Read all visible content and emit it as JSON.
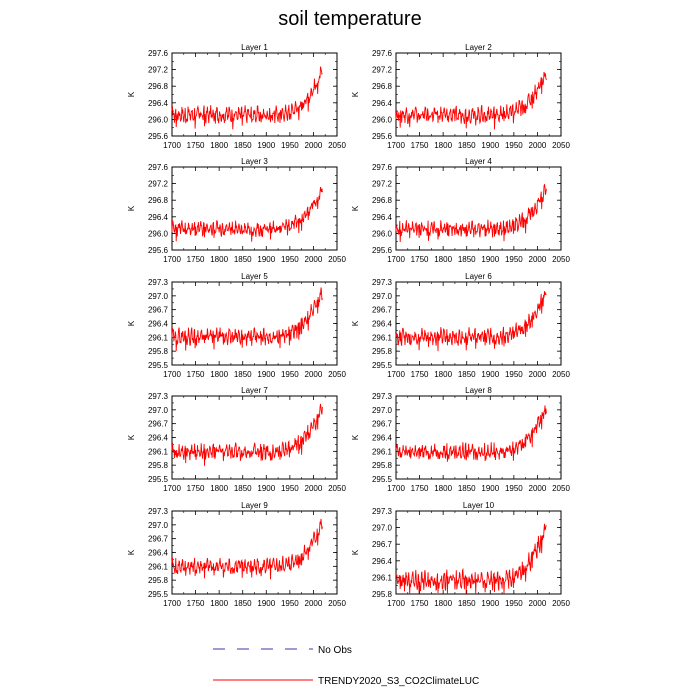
{
  "chart_data": {
    "title": "soil temperature",
    "type": "line",
    "ylabel": "K",
    "x_ticks": [
      1700,
      1750,
      1800,
      1850,
      1900,
      1950,
      2000,
      2050
    ],
    "xlim": [
      1700,
      2050
    ],
    "series_colors": {
      "model": "#ff0000",
      "obs": "#3a3aa0"
    },
    "panels": [
      {
        "title": "Layer 1",
        "ylim": [
          295.6,
          297.6
        ],
        "yticks": [
          "297.6",
          "297.2",
          "296.8",
          "296.4",
          "296.0",
          "295.6"
        ],
        "base": 296.12,
        "amp": 0.18,
        "endval": 297.25
      },
      {
        "title": "Layer 2",
        "ylim": [
          295.6,
          297.6
        ],
        "yticks": [
          "297.6",
          "297.2",
          "296.8",
          "296.4",
          "296.0",
          "295.6"
        ],
        "base": 296.12,
        "amp": 0.18,
        "endval": 297.25
      },
      {
        "title": "Layer 3",
        "ylim": [
          295.6,
          297.6
        ],
        "yticks": [
          "297.6",
          "297.2",
          "296.8",
          "296.4",
          "296.0",
          "295.6"
        ],
        "base": 296.12,
        "amp": 0.17,
        "endval": 297.2
      },
      {
        "title": "Layer 4",
        "ylim": [
          295.6,
          297.6
        ],
        "yticks": [
          "297.6",
          "297.2",
          "296.8",
          "296.4",
          "296.0",
          "295.6"
        ],
        "base": 296.12,
        "amp": 0.17,
        "endval": 297.2
      },
      {
        "title": "Layer 5",
        "ylim": [
          295.5,
          297.3
        ],
        "yticks": [
          "297.3",
          "297.0",
          "296.7",
          "296.4",
          "296.1",
          "295.8",
          "295.5"
        ],
        "base": 296.12,
        "amp": 0.16,
        "endval": 297.22
      },
      {
        "title": "Layer 6",
        "ylim": [
          295.5,
          297.3
        ],
        "yticks": [
          "297.3",
          "297.0",
          "296.7",
          "296.4",
          "296.1",
          "295.8",
          "295.5"
        ],
        "base": 296.12,
        "amp": 0.16,
        "endval": 297.22
      },
      {
        "title": "Layer 7",
        "ylim": [
          295.5,
          297.3
        ],
        "yticks": [
          "297.3",
          "297.0",
          "296.7",
          "296.4",
          "296.1",
          "295.8",
          "295.5"
        ],
        "base": 296.1,
        "amp": 0.16,
        "endval": 297.18
      },
      {
        "title": "Layer 8",
        "ylim": [
          295.5,
          297.3
        ],
        "yticks": [
          "297.3",
          "297.0",
          "296.7",
          "296.4",
          "296.1",
          "295.8",
          "295.5"
        ],
        "base": 296.1,
        "amp": 0.16,
        "endval": 297.18
      },
      {
        "title": "Layer 9",
        "ylim": [
          295.5,
          297.3
        ],
        "yticks": [
          "297.3",
          "297.0",
          "296.7",
          "296.4",
          "296.1",
          "295.8",
          "295.5"
        ],
        "base": 296.1,
        "amp": 0.16,
        "endval": 297.15
      },
      {
        "title": "Layer 10",
        "ylim": [
          295.8,
          297.3
        ],
        "yticks": [
          "297.3",
          "297.0",
          "296.7",
          "296.4",
          "296.1",
          "295.8"
        ],
        "base": 296.05,
        "amp": 0.16,
        "endval": 297.15
      }
    ],
    "legend": [
      {
        "label": "No Obs",
        "style": "dashed",
        "color": "#3a3aa0"
      },
      {
        "label": "TRENDY2020_S3_CO2ClimateLUC",
        "style": "solid",
        "color": "#ff0000"
      }
    ]
  }
}
